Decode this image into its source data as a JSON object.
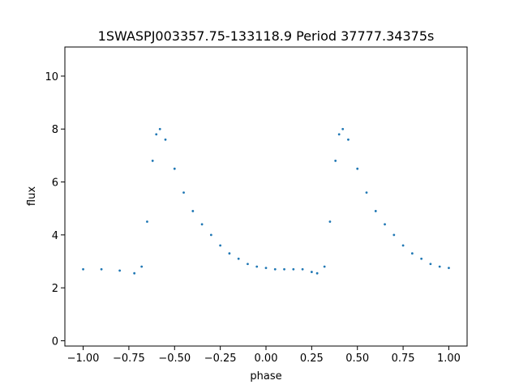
{
  "chart_data": {
    "type": "scatter",
    "title": "1SWASPJ003357.75-133118.9 Period 37777.34375s",
    "xlabel": "phase",
    "ylabel": "flux",
    "xlim": [
      -1.1,
      1.1
    ],
    "ylim": [
      -0.2,
      11.1
    ],
    "xticks": [
      -1.0,
      -0.75,
      -0.5,
      -0.25,
      0.0,
      0.25,
      0.5,
      0.75,
      1.0
    ],
    "xtick_labels": [
      "−1.00",
      "−0.75",
      "−0.50",
      "−0.25",
      "0.00",
      "0.25",
      "0.50",
      "0.75",
      "1.00"
    ],
    "yticks": [
      0,
      2,
      4,
      6,
      8,
      10
    ],
    "ytick_labels": [
      "0",
      "2",
      "4",
      "6",
      "8",
      "10"
    ],
    "grid": false,
    "marker_color": "#1f77b4",
    "series": [
      {
        "x": [
          -1.0,
          -0.9,
          -0.8,
          -0.72,
          -0.68,
          -0.65,
          -0.62,
          -0.6,
          -0.58,
          -0.55,
          -0.5,
          -0.45,
          -0.4,
          -0.35,
          -0.3,
          -0.25,
          -0.2,
          -0.15,
          -0.1,
          -0.05,
          0.0,
          0.05,
          0.1,
          0.15,
          0.2,
          0.25,
          0.28,
          0.32,
          0.35,
          0.38,
          0.4,
          0.42,
          0.45,
          0.5,
          0.55,
          0.6,
          0.65,
          0.7,
          0.75,
          0.8,
          0.85,
          0.9,
          0.95,
          1.0
        ],
        "y": [
          2.7,
          2.7,
          2.65,
          2.55,
          2.8,
          4.5,
          6.8,
          7.8,
          8.0,
          7.6,
          6.5,
          5.6,
          4.9,
          4.4,
          4.0,
          3.6,
          3.3,
          3.1,
          2.9,
          2.8,
          2.75,
          2.7,
          2.7,
          2.7,
          2.7,
          2.6,
          2.55,
          2.8,
          4.5,
          6.8,
          7.8,
          8.0,
          7.6,
          6.5,
          5.6,
          4.9,
          4.4,
          4.0,
          3.6,
          3.3,
          3.1,
          2.9,
          2.8,
          2.75
        ]
      }
    ]
  }
}
